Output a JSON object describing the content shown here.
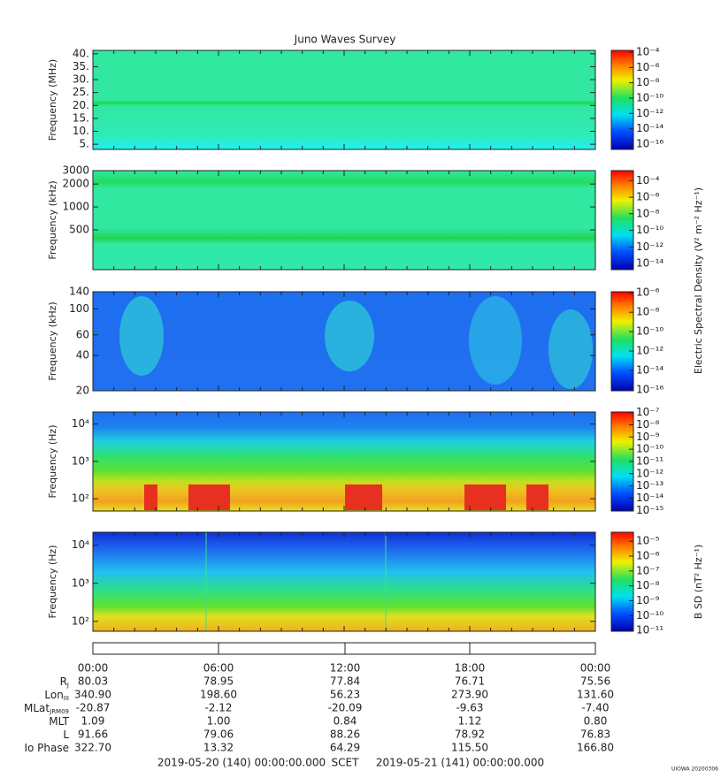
{
  "chart_data": [
    {
      "type": "spectrogram",
      "title": "Juno Waves Survey",
      "ylabel": "Frequency (MHz)",
      "log": false,
      "ylim": [
        3,
        41.3
      ],
      "yticks": [
        {
          "value": 40,
          "label": "40."
        },
        {
          "value": 35,
          "label": "35."
        },
        {
          "value": 30,
          "label": "30."
        },
        {
          "value": 25,
          "label": "25."
        },
        {
          "value": 20,
          "label": "20."
        },
        {
          "value": 15,
          "label": "15."
        },
        {
          "value": 10,
          "label": "10."
        },
        {
          "value": 5,
          "label": "5."
        }
      ],
      "colorbar": {
        "clim": [
          2e-17,
          0.00017
        ],
        "ticks": [
          {
            "value": 0.0001,
            "label": "10⁻⁴"
          },
          {
            "value": 1e-06,
            "label": "10⁻⁶"
          },
          {
            "value": 1e-08,
            "label": "10⁻⁸"
          },
          {
            "value": 1e-10,
            "label": "10⁻¹⁰"
          },
          {
            "value": 1e-12,
            "label": "10⁻¹²"
          },
          {
            "value": 1e-14,
            "label": "10⁻¹⁴"
          },
          {
            "value": 1e-16,
            "label": "10⁻¹⁶"
          }
        ]
      }
    },
    {
      "type": "spectrogram",
      "ylabel": "Frequency (kHz)",
      "log": true,
      "ylim": [
        150,
        3000
      ],
      "yticks": [
        3000,
        2000,
        1000,
        500
      ],
      "colorbar": {
        "label": "Electric Spectral Density (V² m⁻² Hz⁻¹)",
        "clim": [
          1.8e-15,
          0.0016
        ],
        "ticks": [
          {
            "value": 0.0001,
            "label": "10⁻⁴"
          },
          {
            "value": 1e-06,
            "label": "10⁻⁶"
          },
          {
            "value": 1e-08,
            "label": "10⁻⁸"
          },
          {
            "value": 1e-10,
            "label": "10⁻¹⁰"
          },
          {
            "value": 1e-12,
            "label": "10⁻¹²"
          },
          {
            "value": 1e-14,
            "label": "10⁻¹⁴"
          }
        ]
      }
    },
    {
      "type": "spectrogram",
      "ylabel": "Frequency (kHz)",
      "log": true,
      "ylim": [
        20,
        140
      ],
      "yticks": [
        140,
        100,
        60,
        40,
        20
      ],
      "colorbar": {
        "clim": [
          8e-17,
          1.3e-06
        ],
        "ticks": [
          {
            "value": 1e-06,
            "label": "10⁻⁶"
          },
          {
            "value": 1e-08,
            "label": "10⁻⁸"
          },
          {
            "value": 1e-10,
            "label": "10⁻¹⁰"
          },
          {
            "value": 1e-12,
            "label": "10⁻¹²"
          },
          {
            "value": 1e-14,
            "label": "10⁻¹⁴"
          },
          {
            "value": 1e-16,
            "label": "10⁻¹⁶"
          }
        ]
      }
    },
    {
      "type": "spectrogram",
      "ylabel": "Frequency (Hz)",
      "log": true,
      "ylim": [
        47,
        21000
      ],
      "yticks": [
        {
          "value": 10000,
          "label": "10⁴"
        },
        {
          "value": 1000,
          "label": "10³"
        },
        {
          "value": 100,
          "label": "10²"
        }
      ],
      "colorbar": {
        "clim": [
          9e-16,
          1.1e-07
        ],
        "ticks": [
          {
            "value": 1e-07,
            "label": "10⁻⁷"
          },
          {
            "value": 1e-08,
            "label": "10⁻⁸"
          },
          {
            "value": 1e-09,
            "label": "10⁻⁹"
          },
          {
            "value": 1e-10,
            "label": "10⁻¹⁰"
          },
          {
            "value": 1e-11,
            "label": "10⁻¹¹"
          },
          {
            "value": 1e-12,
            "label": "10⁻¹²"
          },
          {
            "value": 1e-13,
            "label": "10⁻¹³"
          },
          {
            "value": 1e-14,
            "label": "10⁻¹⁴"
          },
          {
            "value": 1e-15,
            "label": "10⁻¹⁵"
          }
        ]
      }
    },
    {
      "type": "spectrogram",
      "ylabel": "Frequency (Hz)",
      "log": true,
      "ylim": [
        55,
        22000
      ],
      "yticks": [
        {
          "value": 10000,
          "label": "10⁴"
        },
        {
          "value": 1000,
          "label": "10³"
        },
        {
          "value": 100,
          "label": "10²"
        }
      ],
      "colorbar": {
        "label": "B SD (nT² Hz⁻¹)",
        "clim": [
          9e-12,
          4e-05
        ],
        "ticks": [
          {
            "value": 1e-05,
            "label": "10⁻⁵"
          },
          {
            "value": 1e-06,
            "label": "10⁻⁶"
          },
          {
            "value": 1e-07,
            "label": "10⁻⁷"
          },
          {
            "value": 1e-08,
            "label": "10⁻⁸"
          },
          {
            "value": 1e-09,
            "label": "10⁻⁹"
          },
          {
            "value": 1e-10,
            "label": "10⁻¹⁰"
          },
          {
            "value": 1e-11,
            "label": "10⁻¹¹"
          }
        ]
      }
    }
  ],
  "ephemeris": {
    "times": [
      "00:00",
      "06:00",
      "12:00",
      "18:00",
      "00:00"
    ],
    "rows": [
      {
        "label": "R",
        "sub": "J",
        "values": [
          "80.03",
          "78.95",
          "77.84",
          "76.71",
          "75.56"
        ]
      },
      {
        "label": "Lon",
        "sub": "III",
        "values": [
          "340.90",
          "198.60",
          "56.23",
          "273.90",
          "131.60"
        ]
      },
      {
        "label": "MLat",
        "sub": "JRM09",
        "values": [
          "-20.87",
          "-2.12",
          "-20.09",
          "-9.63",
          "-7.40"
        ]
      },
      {
        "label": "MLT",
        "values": [
          "1.09",
          "1.00",
          "0.84",
          "1.12",
          "0.80"
        ]
      },
      {
        "label": "L",
        "values": [
          "91.66",
          "79.06",
          "88.26",
          "78.92",
          "76.83"
        ]
      },
      {
        "label": "Io Phase",
        "values": [
          "322.70",
          "13.32",
          "64.29",
          "115.50",
          "166.80"
        ]
      }
    ]
  },
  "footer": {
    "start": "2019-05-20 (140) 00:00:00.000",
    "frame": "SCET",
    "end": "2019-05-21 (141) 00:00:00.000",
    "stamp": "UIOWA 20200306"
  }
}
